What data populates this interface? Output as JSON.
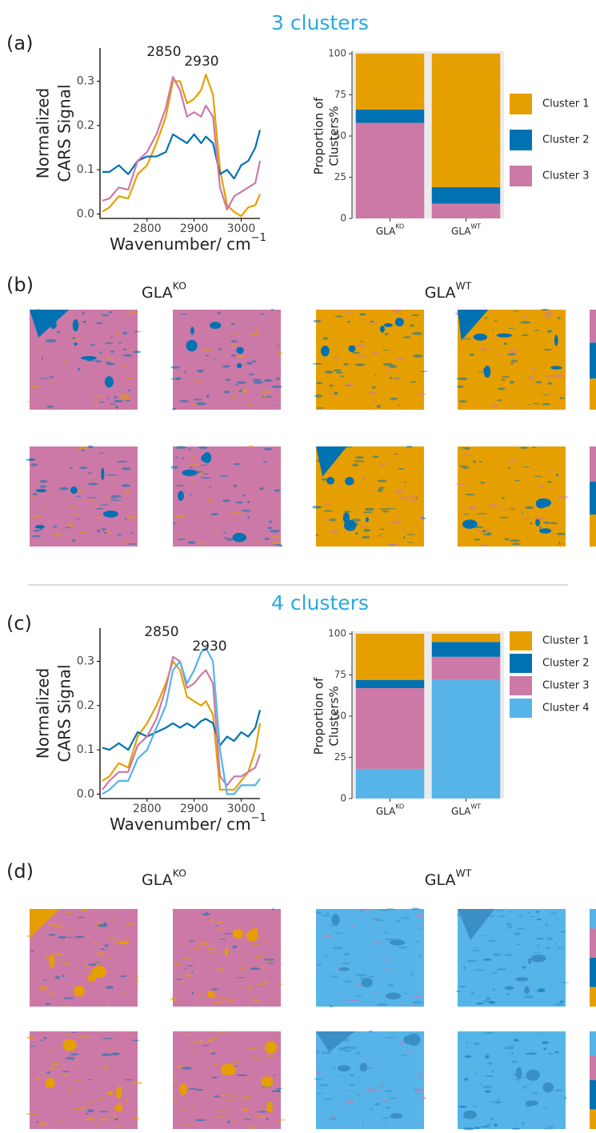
{
  "headings": [
    "3 clusters",
    "4 clusters"
  ],
  "panel_labels": [
    "(a)",
    "(b)",
    "(c)",
    "(d)"
  ],
  "image_panels": [
    {
      "groups": [
        {
          "text": "GLA",
          "sup": "KO"
        },
        {
          "text": "GLA",
          "sup": "WT"
        }
      ]
    },
    {
      "groups": [
        {
          "text": "GLA",
          "sup": "KO"
        },
        {
          "text": "GLA",
          "sup": "WT"
        }
      ]
    }
  ],
  "chart_data": [
    {
      "type": "line",
      "y_label": [
        "Normalized",
        "CARS Signal"
      ],
      "x_label": {
        "text": "Wavenumber/ cm",
        "sup": "−1"
      },
      "annotations": [
        "2850",
        "2930"
      ],
      "x": [
        2705,
        2720,
        2740,
        2760,
        2780,
        2800,
        2820,
        2840,
        2855,
        2870,
        2885,
        2900,
        2915,
        2925,
        2940,
        2955,
        2970,
        2985,
        3000,
        3015,
        3030,
        3040
      ],
      "xlim": [
        2700,
        3040
      ],
      "xticks": [
        2800,
        2900,
        3000
      ],
      "ylim": [
        -0.01,
        0.375
      ],
      "yticks": [
        {
          "value": 0,
          "label": "0.0"
        },
        0.1,
        0.2,
        0.3
      ],
      "series": [
        {
          "color": "#E69F00",
          "values": [
            0.005,
            0.015,
            0.04,
            0.035,
            0.09,
            0.11,
            0.16,
            0.22,
            0.3,
            0.3,
            0.25,
            0.26,
            0.28,
            0.315,
            0.27,
            0.1,
            0.02,
            0.005,
            -0.005,
            0.015,
            0.02,
            0.045
          ]
        },
        {
          "color": "#0072B2",
          "values": [
            0.095,
            0.095,
            0.11,
            0.09,
            0.12,
            0.13,
            0.13,
            0.14,
            0.18,
            0.17,
            0.16,
            0.18,
            0.16,
            0.175,
            0.16,
            0.09,
            0.1,
            0.08,
            0.11,
            0.12,
            0.15,
            0.19
          ]
        },
        {
          "color": "#CC79A7",
          "values": [
            0.03,
            0.035,
            0.06,
            0.055,
            0.12,
            0.14,
            0.18,
            0.24,
            0.31,
            0.28,
            0.22,
            0.23,
            0.22,
            0.245,
            0.22,
            0.06,
            0.01,
            0.04,
            0.05,
            0.06,
            0.07,
            0.12
          ]
        }
      ]
    },
    {
      "type": "bar",
      "stacked": true,
      "y_label": [
        "Proportion of",
        "Clusters%"
      ],
      "categories": [
        {
          "text": "GLA",
          "sup": "KO"
        },
        {
          "text": "GLA",
          "sup": "WT"
        }
      ],
      "ylim": [
        0,
        100
      ],
      "yticks": [
        0,
        25,
        50,
        75,
        100
      ],
      "series": [
        {
          "name": "Cluster 1",
          "color": "#E69F00",
          "values": [
            34,
            81
          ]
        },
        {
          "name": "Cluster 2",
          "color": "#0072B2",
          "values": [
            8,
            10
          ]
        },
        {
          "name": "Cluster 3",
          "color": "#CC79A7",
          "values": [
            58,
            9
          ]
        }
      ]
    },
    {
      "type": "line",
      "y_label": [
        "Normalized",
        "CARS Signal"
      ],
      "x_label": {
        "text": "Wavenumber/ cm",
        "sup": "−1"
      },
      "annotations": [
        "2850",
        "2930"
      ],
      "x": [
        2705,
        2720,
        2740,
        2760,
        2780,
        2800,
        2820,
        2840,
        2855,
        2870,
        2885,
        2900,
        2915,
        2925,
        2940,
        2955,
        2970,
        2985,
        3000,
        3015,
        3030,
        3040
      ],
      "xlim": [
        2700,
        3040
      ],
      "xticks": [
        2800,
        2900,
        3000
      ],
      "ylim": [
        -0.01,
        0.375
      ],
      "yticks": [
        {
          "value": 0,
          "label": "0.0"
        },
        0.1,
        0.2,
        0.3
      ],
      "series": [
        {
          "color": "#E69F00",
          "values": [
            0.03,
            0.04,
            0.07,
            0.06,
            0.13,
            0.16,
            0.2,
            0.25,
            0.3,
            0.28,
            0.22,
            0.21,
            0.2,
            0.21,
            0.18,
            0.01,
            0.01,
            0.01,
            0.03,
            0.05,
            0.1,
            0.16
          ]
        },
        {
          "color": "#0072B2",
          "values": [
            0.105,
            0.1,
            0.115,
            0.1,
            0.14,
            0.13,
            0.14,
            0.15,
            0.16,
            0.15,
            0.16,
            0.15,
            0.165,
            0.17,
            0.16,
            0.11,
            0.13,
            0.12,
            0.14,
            0.13,
            0.15,
            0.19
          ]
        },
        {
          "color": "#CC79A7",
          "values": [
            0.01,
            0.03,
            0.05,
            0.05,
            0.11,
            0.13,
            0.17,
            0.24,
            0.31,
            0.3,
            0.24,
            0.25,
            0.27,
            0.28,
            0.25,
            0.04,
            0.02,
            0.04,
            0.04,
            0.05,
            0.06,
            0.09
          ]
        },
        {
          "color": "#56B4E9",
          "values": [
            0.0,
            0.01,
            0.03,
            0.03,
            0.08,
            0.1,
            0.15,
            0.2,
            0.28,
            0.3,
            0.25,
            0.28,
            0.32,
            0.33,
            0.3,
            0.1,
            0.0,
            0.0,
            0.02,
            0.02,
            0.02,
            0.035
          ]
        }
      ]
    },
    {
      "type": "bar",
      "stacked": true,
      "y_label": [
        "Proportion of",
        "Clusters%"
      ],
      "categories": [
        {
          "text": "GLA",
          "sup": "KO"
        },
        {
          "text": "GLA",
          "sup": "WT"
        }
      ],
      "ylim": [
        0,
        100
      ],
      "yticks": [
        0,
        25,
        50,
        75,
        100
      ],
      "series": [
        {
          "name": "Cluster 1",
          "color": "#E69F00",
          "values": [
            28,
            5
          ]
        },
        {
          "name": "Cluster 2",
          "color": "#0072B2",
          "values": [
            5,
            9
          ]
        },
        {
          "name": "Cluster 3",
          "color": "#CC79A7",
          "values": [
            49,
            14
          ]
        },
        {
          "name": "Cluster 4",
          "color": "#56B4E9",
          "values": [
            18,
            72
          ]
        }
      ]
    }
  ]
}
